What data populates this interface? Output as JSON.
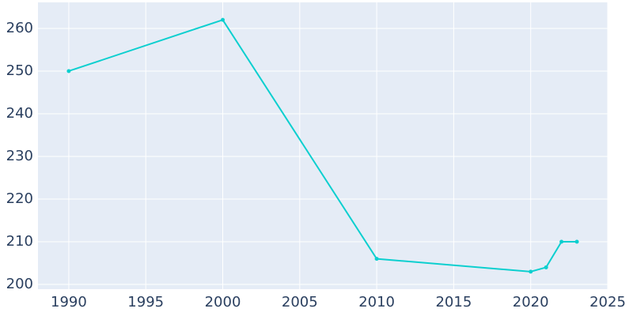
{
  "chart_data": {
    "type": "line",
    "x": [
      1990,
      2000,
      2010,
      2020,
      2021,
      2022,
      2023
    ],
    "series": [
      {
        "color": "#0ccfcf",
        "values": [
          250,
          262,
          206,
          203,
          204,
          210,
          210
        ]
      }
    ],
    "xlim": [
      1988,
      2025
    ],
    "xticks": [
      1990,
      1995,
      2000,
      2005,
      2010,
      2015,
      2020,
      2025
    ],
    "ylim": [
      198.9,
      266.1
    ],
    "yticks": [
      200,
      210,
      220,
      230,
      240,
      250,
      260
    ],
    "grid": true
  }
}
